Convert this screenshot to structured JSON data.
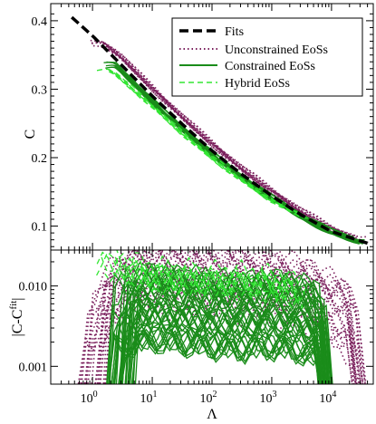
{
  "chart_data": [
    {
      "type": "line",
      "xscale": "log",
      "xlim": [
        0.2,
        50000
      ],
      "ylim": [
        0.065,
        0.425
      ],
      "ylabel": "C",
      "yticks": [
        {
          "value": 0.1,
          "label": "0.1"
        },
        {
          "value": 0.2,
          "label": "0.2"
        },
        {
          "value": 0.3,
          "label": "0.3"
        },
        {
          "value": 0.4,
          "label": "0.4"
        }
      ],
      "legend": {
        "placement": "top-right",
        "entries": [
          {
            "label": "Fits",
            "color": "#000000",
            "style": "dashed-thick"
          },
          {
            "label": "Unconstrained EoSs",
            "color": "#7a1f5c",
            "style": "dotted"
          },
          {
            "label": "Constrained EoSs",
            "color": "#1a8c1a",
            "style": "solid"
          },
          {
            "label": "Hybrid EoSs",
            "color": "#33e633",
            "style": "dashed"
          }
        ]
      },
      "series": [
        {
          "name": "Fits",
          "color": "#000000",
          "x": [
            0.45,
            1,
            3,
            10,
            30,
            100,
            300,
            1000,
            3000,
            10000,
            40000
          ],
          "y": [
            0.405,
            0.378,
            0.336,
            0.29,
            0.251,
            0.21,
            0.177,
            0.144,
            0.117,
            0.092,
            0.075
          ]
        },
        {
          "name": "Unconstrained EoSs",
          "color": "#7a1f5c",
          "x": [
            1.5,
            3,
            10,
            30,
            100,
            300,
            1000,
            3000,
            10000,
            30000
          ],
          "y": [
            0.368,
            0.348,
            0.302,
            0.262,
            0.221,
            0.186,
            0.152,
            0.123,
            0.097,
            0.079
          ]
        },
        {
          "name": "Constrained EoSs",
          "color": "#1a8c1a",
          "x": [
            2.5,
            10,
            30,
            100,
            300,
            1000,
            3000,
            10000,
            30000
          ],
          "y": [
            0.334,
            0.282,
            0.244,
            0.205,
            0.172,
            0.141,
            0.115,
            0.091,
            0.077
          ]
        },
        {
          "name": "Hybrid EoSs",
          "color": "#33e633",
          "x": [
            2,
            5,
            10,
            30,
            100,
            300,
            1000,
            3000
          ],
          "y": [
            0.328,
            0.298,
            0.275,
            0.237,
            0.199,
            0.168,
            0.137,
            0.115
          ]
        }
      ]
    },
    {
      "type": "line",
      "xscale": "log",
      "yscale": "log",
      "xlim": [
        0.2,
        50000
      ],
      "ylim": [
        0.0006,
        0.028
      ],
      "xlabel": "Λ",
      "ylabel_main": "|C-C",
      "ylabel_sup": "fit",
      "ylabel_tail": "|",
      "xticks": [
        {
          "value": 1,
          "base": "10",
          "exp": "0"
        },
        {
          "value": 10,
          "base": "10",
          "exp": "1"
        },
        {
          "value": 100,
          "base": "10",
          "exp": "2"
        },
        {
          "value": 1000,
          "base": "10",
          "exp": "3"
        },
        {
          "value": 10000,
          "base": "10",
          "exp": "4"
        }
      ],
      "yticks": [
        {
          "value": 0.001,
          "label": "0.001"
        },
        {
          "value": 0.01,
          "label": "0.010"
        }
      ],
      "series": [
        {
          "name": "Unconstrained EoSs",
          "color": "#7a1f5c",
          "x": [
            1,
            3,
            10,
            30,
            100,
            300,
            1000,
            3000,
            10000,
            30000
          ],
          "y": [
            0.0025,
            0.009,
            0.0125,
            0.012,
            0.011,
            0.0105,
            0.0095,
            0.0075,
            0.005,
            0.0022
          ]
        },
        {
          "name": "Constrained EoSs",
          "color": "#1a8c1a",
          "x": [
            3,
            10,
            30,
            100,
            300,
            1000,
            3000,
            8000
          ],
          "y": [
            0.0045,
            0.0055,
            0.005,
            0.0045,
            0.0042,
            0.0045,
            0.004,
            0.0028
          ]
        },
        {
          "name": "Hybrid EoSs",
          "color": "#33e633",
          "x": [
            2,
            3,
            5,
            10,
            30,
            100,
            300,
            1000,
            3000
          ],
          "y": [
            0.02,
            0.018,
            0.016,
            0.014,
            0.013,
            0.012,
            0.012,
            0.011,
            0.0085
          ]
        }
      ]
    }
  ]
}
